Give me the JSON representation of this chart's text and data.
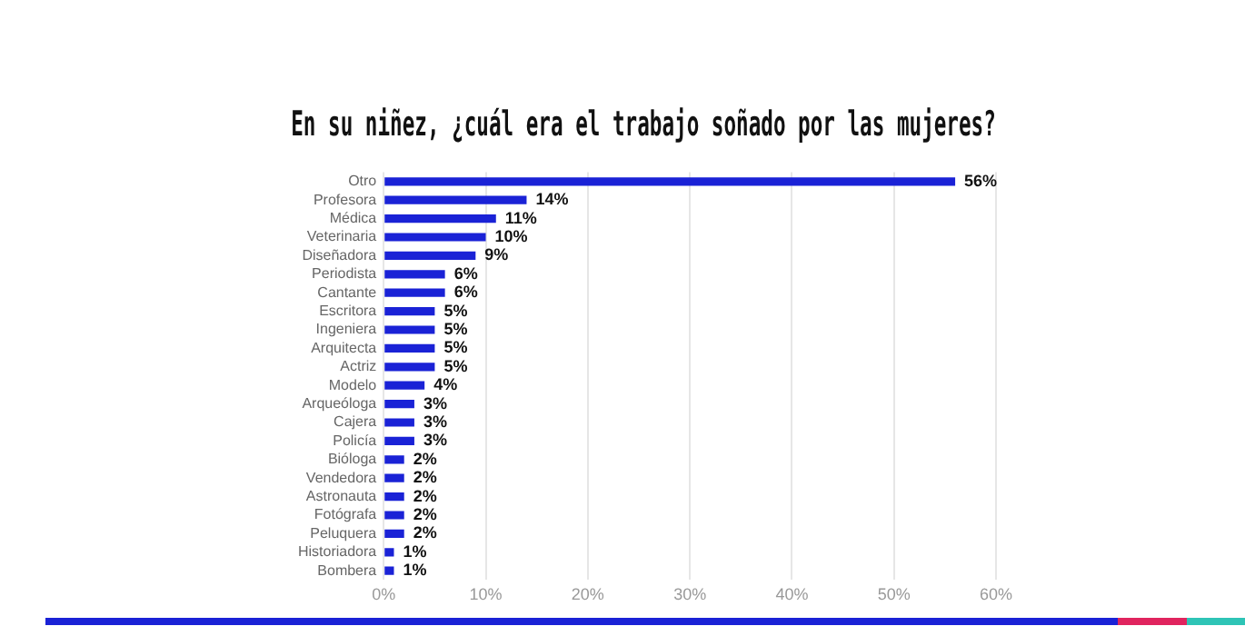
{
  "chart_data": {
    "type": "bar",
    "orientation": "horizontal",
    "title": "En su niñez, ¿cuál era el trabajo soñado por las mujeres?",
    "categories": [
      "Otro",
      "Profesora",
      "Médica",
      "Veterinaria",
      "Diseñadora",
      "Periodista",
      "Cantante",
      "Escritora",
      "Ingeniera",
      "Arquitecta",
      "Actriz",
      "Modelo",
      "Arqueóloga",
      "Cajera",
      "Policía",
      "Bióloga",
      "Vendedora",
      "Astronauta",
      "Fotógrafa",
      "Peluquera",
      "Historiadora",
      "Bombera"
    ],
    "values": [
      56,
      14,
      11,
      10,
      9,
      6,
      6,
      5,
      5,
      5,
      5,
      4,
      3,
      3,
      3,
      2,
      2,
      2,
      2,
      2,
      1,
      1
    ],
    "value_labels": [
      "56%",
      "14%",
      "11%",
      "10%",
      "9%",
      "6%",
      "6%",
      "5%",
      "5%",
      "5%",
      "5%",
      "4%",
      "3%",
      "3%",
      "3%",
      "2%",
      "2%",
      "2%",
      "2%",
      "2%",
      "1%",
      "1%"
    ],
    "color": "#1a22d6",
    "xlim": [
      0,
      60
    ],
    "xticks": [
      {
        "value": 0,
        "label": "0%"
      },
      {
        "value": 10,
        "label": "10%"
      },
      {
        "value": 20,
        "label": "20%"
      },
      {
        "value": 30,
        "label": "30%"
      },
      {
        "value": 40,
        "label": "40%"
      },
      {
        "value": 50,
        "label": "50%"
      },
      {
        "value": 60,
        "label": "60%"
      }
    ],
    "grid": "x",
    "legend": false
  }
}
